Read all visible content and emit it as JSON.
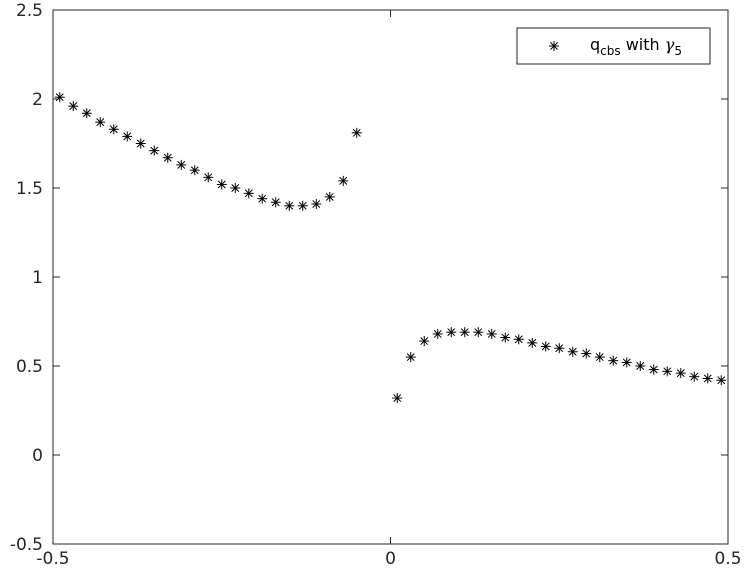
{
  "chart_data": {
    "type": "scatter",
    "xlim": [
      -0.5,
      0.5
    ],
    "ylim": [
      -0.5,
      2.5
    ],
    "x_ticks": [
      "-0.5",
      "0",
      "0.5"
    ],
    "y_ticks": [
      "-0.5",
      "0",
      "0.5",
      "1",
      "1.5",
      "2",
      "2.5"
    ],
    "x_tick_values": [
      -0.5,
      0,
      0.5
    ],
    "y_tick_values": [
      -0.5,
      0,
      0.5,
      1,
      1.5,
      2,
      2.5
    ],
    "grid": false,
    "legend": {
      "placement": "top-right",
      "marker": "asterisk",
      "text_main": "q",
      "text_sub": "cbs",
      "text_with": " with ",
      "text_gamma": "γ",
      "text_gamma_sub": "5"
    },
    "series": [
      {
        "marker": "asterisk",
        "color": "#000000",
        "points": [
          [
            -0.49,
            2.01
          ],
          [
            -0.47,
            1.96
          ],
          [
            -0.45,
            1.92
          ],
          [
            -0.43,
            1.87
          ],
          [
            -0.41,
            1.83
          ],
          [
            -0.39,
            1.79
          ],
          [
            -0.37,
            1.75
          ],
          [
            -0.35,
            1.71
          ],
          [
            -0.33,
            1.67
          ],
          [
            -0.31,
            1.63
          ],
          [
            -0.29,
            1.6
          ],
          [
            -0.27,
            1.56
          ],
          [
            -0.25,
            1.52
          ],
          [
            -0.23,
            1.5
          ],
          [
            -0.21,
            1.47
          ],
          [
            -0.19,
            1.44
          ],
          [
            -0.17,
            1.42
          ],
          [
            -0.15,
            1.4
          ],
          [
            -0.13,
            1.4
          ],
          [
            -0.11,
            1.41
          ],
          [
            -0.09,
            1.45
          ],
          [
            -0.07,
            1.54
          ],
          [
            -0.05,
            1.81
          ],
          [
            0.01,
            0.32
          ],
          [
            0.03,
            0.55
          ],
          [
            0.05,
            0.64
          ],
          [
            0.07,
            0.68
          ],
          [
            0.09,
            0.69
          ],
          [
            0.11,
            0.69
          ],
          [
            0.13,
            0.69
          ],
          [
            0.15,
            0.68
          ],
          [
            0.17,
            0.66
          ],
          [
            0.19,
            0.65
          ],
          [
            0.21,
            0.63
          ],
          [
            0.23,
            0.61
          ],
          [
            0.25,
            0.6
          ],
          [
            0.27,
            0.58
          ],
          [
            0.29,
            0.57
          ],
          [
            0.31,
            0.55
          ],
          [
            0.33,
            0.53
          ],
          [
            0.35,
            0.52
          ],
          [
            0.37,
            0.5
          ],
          [
            0.39,
            0.48
          ],
          [
            0.41,
            0.47
          ],
          [
            0.43,
            0.46
          ],
          [
            0.45,
            0.44
          ],
          [
            0.47,
            0.43
          ],
          [
            0.49,
            0.42
          ]
        ]
      }
    ]
  }
}
